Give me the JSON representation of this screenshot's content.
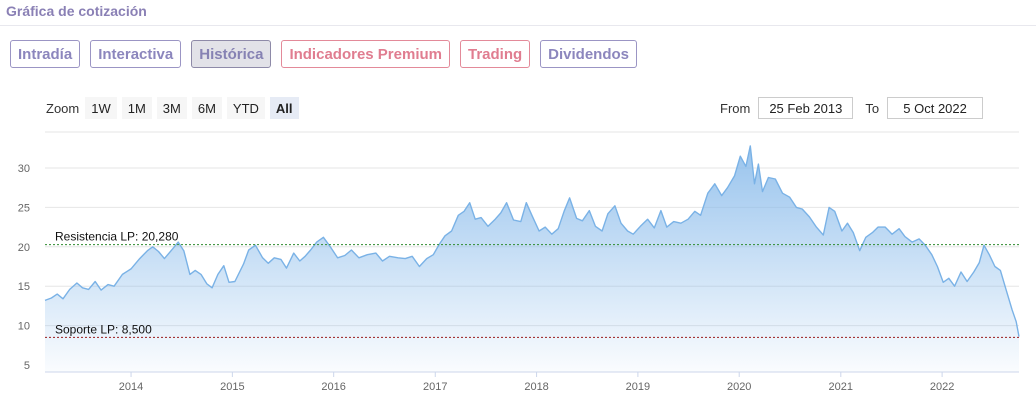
{
  "header": {
    "title": "Gráfica de cotización"
  },
  "tabs": [
    {
      "label": "Intradía",
      "style": "normal"
    },
    {
      "label": "Interactiva",
      "style": "normal"
    },
    {
      "label": "Histórica",
      "style": "active"
    },
    {
      "label": "Indicadores Premium",
      "style": "premium"
    },
    {
      "label": "Trading",
      "style": "premium"
    },
    {
      "label": "Dividendos",
      "style": "normal"
    }
  ],
  "zoom": {
    "label": "Zoom",
    "buttons": [
      "1W",
      "1M",
      "3M",
      "6M",
      "YTD",
      "All"
    ],
    "selected": "All"
  },
  "range": {
    "from_label": "From",
    "from_value": "25 Feb 2013",
    "to_label": "To",
    "to_value": "5 Oct 2022"
  },
  "colors": {
    "line": "#7ab2e6",
    "fill_top": "#86b9ea",
    "resistance": "#2e8b2e",
    "support": "#9b1c1c",
    "tab_border": "#9b95c4",
    "premium": "#e07d90"
  },
  "chart_data": {
    "type": "area",
    "title": "",
    "xlabel": "",
    "ylabel": "",
    "ylim": [
      5,
      34
    ],
    "yticks": [
      5,
      10,
      15,
      20,
      25,
      30
    ],
    "xlim": [
      "2013-02-25",
      "2022-10-05"
    ],
    "xticks": [
      "2014",
      "2015",
      "2016",
      "2017",
      "2018",
      "2019",
      "2020",
      "2021",
      "2022"
    ],
    "grid": true,
    "levels": [
      {
        "name": "Resistencia LP",
        "label": "Resistencia LP: 20,280",
        "value": 20.28,
        "color": "#2e8b2e"
      },
      {
        "name": "Soporte LP",
        "label": "Soporte LP: 8,500",
        "value": 8.5,
        "color": "#9b1c1c"
      }
    ],
    "series": [
      {
        "values": [
          [
            "2013-02-25",
            13.2
          ],
          [
            "2013-03-20",
            13.5
          ],
          [
            "2013-04-10",
            14.0
          ],
          [
            "2013-05-01",
            13.4
          ],
          [
            "2013-05-25",
            14.6
          ],
          [
            "2013-06-20",
            15.4
          ],
          [
            "2013-07-10",
            14.8
          ],
          [
            "2013-08-01",
            14.6
          ],
          [
            "2013-08-25",
            15.6
          ],
          [
            "2013-09-15",
            14.5
          ],
          [
            "2013-10-10",
            15.2
          ],
          [
            "2013-11-01",
            15.0
          ],
          [
            "2013-12-01",
            16.5
          ],
          [
            "2014-01-01",
            17.2
          ],
          [
            "2014-02-01",
            18.5
          ],
          [
            "2014-03-01",
            19.5
          ],
          [
            "2014-03-20",
            20.0
          ],
          [
            "2014-04-10",
            19.4
          ],
          [
            "2014-05-01",
            18.5
          ],
          [
            "2014-06-01",
            19.8
          ],
          [
            "2014-06-20",
            20.6
          ],
          [
            "2014-07-10",
            19.5
          ],
          [
            "2014-08-01",
            16.5
          ],
          [
            "2014-08-20",
            17.0
          ],
          [
            "2014-09-10",
            16.5
          ],
          [
            "2014-10-01",
            15.3
          ],
          [
            "2014-10-20",
            14.8
          ],
          [
            "2014-11-10",
            16.5
          ],
          [
            "2014-12-01",
            17.6
          ],
          [
            "2014-12-20",
            15.5
          ],
          [
            "2015-01-10",
            15.6
          ],
          [
            "2015-02-10",
            17.8
          ],
          [
            "2015-03-01",
            19.6
          ],
          [
            "2015-03-25",
            20.2
          ],
          [
            "2015-04-20",
            18.6
          ],
          [
            "2015-05-10",
            17.9
          ],
          [
            "2015-06-01",
            18.6
          ],
          [
            "2015-06-25",
            18.4
          ],
          [
            "2015-07-15",
            17.3
          ],
          [
            "2015-08-10",
            19.2
          ],
          [
            "2015-09-01",
            18.2
          ],
          [
            "2015-09-20",
            18.8
          ],
          [
            "2015-10-10",
            19.6
          ],
          [
            "2015-11-01",
            20.6
          ],
          [
            "2015-11-25",
            21.2
          ],
          [
            "2015-12-20",
            20.0
          ],
          [
            "2016-01-15",
            18.6
          ],
          [
            "2016-02-10",
            18.9
          ],
          [
            "2016-03-05",
            19.6
          ],
          [
            "2016-04-01",
            18.6
          ],
          [
            "2016-05-01",
            19.0
          ],
          [
            "2016-06-01",
            19.2
          ],
          [
            "2016-06-25",
            18.2
          ],
          [
            "2016-07-20",
            18.8
          ],
          [
            "2016-08-20",
            18.6
          ],
          [
            "2016-09-15",
            18.5
          ],
          [
            "2016-10-10",
            18.8
          ],
          [
            "2016-11-05",
            17.5
          ],
          [
            "2016-12-01",
            18.5
          ],
          [
            "2016-12-25",
            19.0
          ],
          [
            "2017-01-15",
            20.3
          ],
          [
            "2017-02-05",
            21.4
          ],
          [
            "2017-03-01",
            22.0
          ],
          [
            "2017-03-25",
            24.0
          ],
          [
            "2017-04-15",
            24.5
          ],
          [
            "2017-05-05",
            25.6
          ],
          [
            "2017-05-25",
            23.5
          ],
          [
            "2017-06-15",
            23.7
          ],
          [
            "2017-07-10",
            22.6
          ],
          [
            "2017-08-05",
            23.5
          ],
          [
            "2017-08-25",
            24.3
          ],
          [
            "2017-09-15",
            25.6
          ],
          [
            "2017-10-10",
            23.4
          ],
          [
            "2017-11-05",
            23.2
          ],
          [
            "2017-11-25",
            25.6
          ],
          [
            "2017-12-15",
            24.0
          ],
          [
            "2018-01-10",
            22.0
          ],
          [
            "2018-02-01",
            22.5
          ],
          [
            "2018-02-25",
            21.6
          ],
          [
            "2018-03-20",
            22.3
          ],
          [
            "2018-04-10",
            24.5
          ],
          [
            "2018-04-30",
            26.2
          ],
          [
            "2018-05-25",
            23.6
          ],
          [
            "2018-06-15",
            23.3
          ],
          [
            "2018-07-10",
            24.6
          ],
          [
            "2018-08-01",
            22.6
          ],
          [
            "2018-08-25",
            22.0
          ],
          [
            "2018-09-15",
            24.2
          ],
          [
            "2018-10-10",
            25.2
          ],
          [
            "2018-11-01",
            23.0
          ],
          [
            "2018-11-25",
            22.0
          ],
          [
            "2018-12-15",
            21.6
          ],
          [
            "2019-01-10",
            22.6
          ],
          [
            "2019-02-05",
            23.5
          ],
          [
            "2019-03-01",
            22.4
          ],
          [
            "2019-03-25",
            24.6
          ],
          [
            "2019-04-15",
            22.5
          ],
          [
            "2019-05-10",
            23.2
          ],
          [
            "2019-06-05",
            23.0
          ],
          [
            "2019-07-01",
            23.5
          ],
          [
            "2019-07-25",
            24.5
          ],
          [
            "2019-08-15",
            24.0
          ],
          [
            "2019-09-10",
            26.8
          ],
          [
            "2019-10-05",
            28.0
          ],
          [
            "2019-10-30",
            26.5
          ],
          [
            "2019-11-20",
            27.5
          ],
          [
            "2019-12-15",
            29.0
          ],
          [
            "2020-01-05",
            31.5
          ],
          [
            "2020-01-25",
            30.2
          ],
          [
            "2020-02-10",
            32.8
          ],
          [
            "2020-02-25",
            28.0
          ],
          [
            "2020-03-10",
            30.5
          ],
          [
            "2020-03-25",
            27.0
          ],
          [
            "2020-04-15",
            28.8
          ],
          [
            "2020-05-10",
            28.6
          ],
          [
            "2020-06-05",
            26.8
          ],
          [
            "2020-07-01",
            26.3
          ],
          [
            "2020-07-25",
            25.0
          ],
          [
            "2020-08-15",
            24.8
          ],
          [
            "2020-09-10",
            23.8
          ],
          [
            "2020-10-05",
            22.5
          ],
          [
            "2020-10-30",
            21.5
          ],
          [
            "2020-11-20",
            25.0
          ],
          [
            "2020-12-10",
            24.5
          ],
          [
            "2021-01-05",
            22.0
          ],
          [
            "2021-01-25",
            23.0
          ],
          [
            "2021-02-15",
            21.8
          ],
          [
            "2021-03-10",
            19.5
          ],
          [
            "2021-04-01",
            21.2
          ],
          [
            "2021-04-25",
            21.8
          ],
          [
            "2021-05-15",
            22.5
          ],
          [
            "2021-06-10",
            22.5
          ],
          [
            "2021-07-05",
            21.6
          ],
          [
            "2021-07-30",
            22.3
          ],
          [
            "2021-08-20",
            21.3
          ],
          [
            "2021-09-15",
            20.6
          ],
          [
            "2021-10-10",
            21.0
          ],
          [
            "2021-11-01",
            20.2
          ],
          [
            "2021-11-25",
            19.0
          ],
          [
            "2021-12-15",
            17.5
          ],
          [
            "2022-01-05",
            15.5
          ],
          [
            "2022-01-25",
            16.0
          ],
          [
            "2022-02-15",
            15.0
          ],
          [
            "2022-03-10",
            16.8
          ],
          [
            "2022-04-01",
            15.6
          ],
          [
            "2022-04-25",
            16.8
          ],
          [
            "2022-05-15",
            18.0
          ],
          [
            "2022-06-01",
            20.2
          ],
          [
            "2022-06-20",
            19.0
          ],
          [
            "2022-07-10",
            17.5
          ],
          [
            "2022-07-30",
            17.0
          ],
          [
            "2022-08-20",
            14.5
          ],
          [
            "2022-09-10",
            12.0
          ],
          [
            "2022-09-25",
            10.5
          ],
          [
            "2022-10-05",
            8.6
          ]
        ]
      }
    ]
  }
}
